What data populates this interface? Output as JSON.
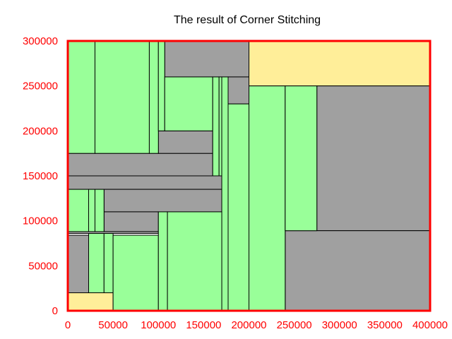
{
  "chart_data": {
    "type": "rectangles",
    "title": "The result of Corner Stitching",
    "xlabel": "",
    "ylabel": "",
    "xlim": [
      0,
      400000
    ],
    "ylim": [
      0,
      300000
    ],
    "x_ticks": [
      0,
      50000,
      100000,
      150000,
      200000,
      250000,
      300000,
      350000,
      400000
    ],
    "y_ticks": [
      0,
      50000,
      100000,
      150000,
      200000,
      250000,
      300000
    ],
    "colors": {
      "space": "#99ff99",
      "solid": "#a0a0a0",
      "highlight": "#ffee99",
      "frame": "#ff0000",
      "tick_text": "#ff0000",
      "tile_edge": "#000000"
    },
    "tiles": [
      {
        "kind": "highlight",
        "x0": 200000,
        "y0": 250000,
        "x1": 400000,
        "y1": 300000
      },
      {
        "kind": "highlight",
        "x0": 0,
        "y0": 0,
        "x1": 50000,
        "y1": 20000
      },
      {
        "kind": "solid",
        "x0": 107000,
        "y0": 260000,
        "x1": 200000,
        "y1": 300000
      },
      {
        "kind": "solid",
        "x0": 0,
        "y0": 150000,
        "x1": 160000,
        "y1": 175000
      },
      {
        "kind": "solid",
        "x0": 0,
        "y0": 135000,
        "x1": 170000,
        "y1": 150000
      },
      {
        "kind": "solid",
        "x0": 40000,
        "y0": 110000,
        "x1": 170000,
        "y1": 135000
      },
      {
        "kind": "solid",
        "x0": 40000,
        "y0": 88000,
        "x1": 100000,
        "y1": 110000
      },
      {
        "kind": "solid",
        "x0": 0,
        "y0": 86000,
        "x1": 100000,
        "y1": 88000
      },
      {
        "kind": "solid",
        "x0": 0,
        "y0": 20000,
        "x1": 23000,
        "y1": 84000
      },
      {
        "kind": "solid",
        "x0": 100000,
        "y0": 175000,
        "x1": 160000,
        "y1": 200000
      },
      {
        "kind": "solid",
        "x0": 177000,
        "y0": 230000,
        "x1": 200000,
        "y1": 260000
      },
      {
        "kind": "solid",
        "x0": 275000,
        "y0": 89000,
        "x1": 400000,
        "y1": 250000
      },
      {
        "kind": "solid",
        "x0": 240000,
        "y0": 0,
        "x1": 400000,
        "y1": 89000
      },
      {
        "kind": "space",
        "x0": 0,
        "y0": 175000,
        "x1": 30000,
        "y1": 300000
      },
      {
        "kind": "space",
        "x0": 30000,
        "y0": 175000,
        "x1": 90000,
        "y1": 300000
      },
      {
        "kind": "space",
        "x0": 90000,
        "y0": 175000,
        "x1": 100000,
        "y1": 300000
      },
      {
        "kind": "space",
        "x0": 100000,
        "y0": 200000,
        "x1": 107000,
        "y1": 300000
      },
      {
        "kind": "space",
        "x0": 107000,
        "y0": 200000,
        "x1": 160000,
        "y1": 260000
      },
      {
        "kind": "space",
        "x0": 160000,
        "y0": 150000,
        "x1": 167000,
        "y1": 260000
      },
      {
        "kind": "space",
        "x0": 167000,
        "y0": 150000,
        "x1": 170000,
        "y1": 260000
      },
      {
        "kind": "space",
        "x0": 170000,
        "y0": 0,
        "x1": 177000,
        "y1": 260000
      },
      {
        "kind": "space",
        "x0": 177000,
        "y0": 0,
        "x1": 200000,
        "y1": 230000
      },
      {
        "kind": "space",
        "x0": 200000,
        "y0": 0,
        "x1": 240000,
        "y1": 250000
      },
      {
        "kind": "space",
        "x0": 240000,
        "y0": 89000,
        "x1": 275000,
        "y1": 250000
      },
      {
        "kind": "space",
        "x0": 0,
        "y0": 88000,
        "x1": 23000,
        "y1": 135000
      },
      {
        "kind": "space",
        "x0": 23000,
        "y0": 88000,
        "x1": 30000,
        "y1": 135000
      },
      {
        "kind": "space",
        "x0": 30000,
        "y0": 88000,
        "x1": 40000,
        "y1": 135000
      },
      {
        "kind": "space",
        "x0": 23000,
        "y0": 20000,
        "x1": 40000,
        "y1": 86000
      },
      {
        "kind": "space",
        "x0": 40000,
        "y0": 20000,
        "x1": 50000,
        "y1": 86000
      },
      {
        "kind": "space",
        "x0": 50000,
        "y0": 0,
        "x1": 100000,
        "y1": 84000
      },
      {
        "kind": "space",
        "x0": 100000,
        "y0": 0,
        "x1": 110000,
        "y1": 110000
      },
      {
        "kind": "space",
        "x0": 110000,
        "y0": 0,
        "x1": 170000,
        "y1": 110000
      }
    ]
  }
}
